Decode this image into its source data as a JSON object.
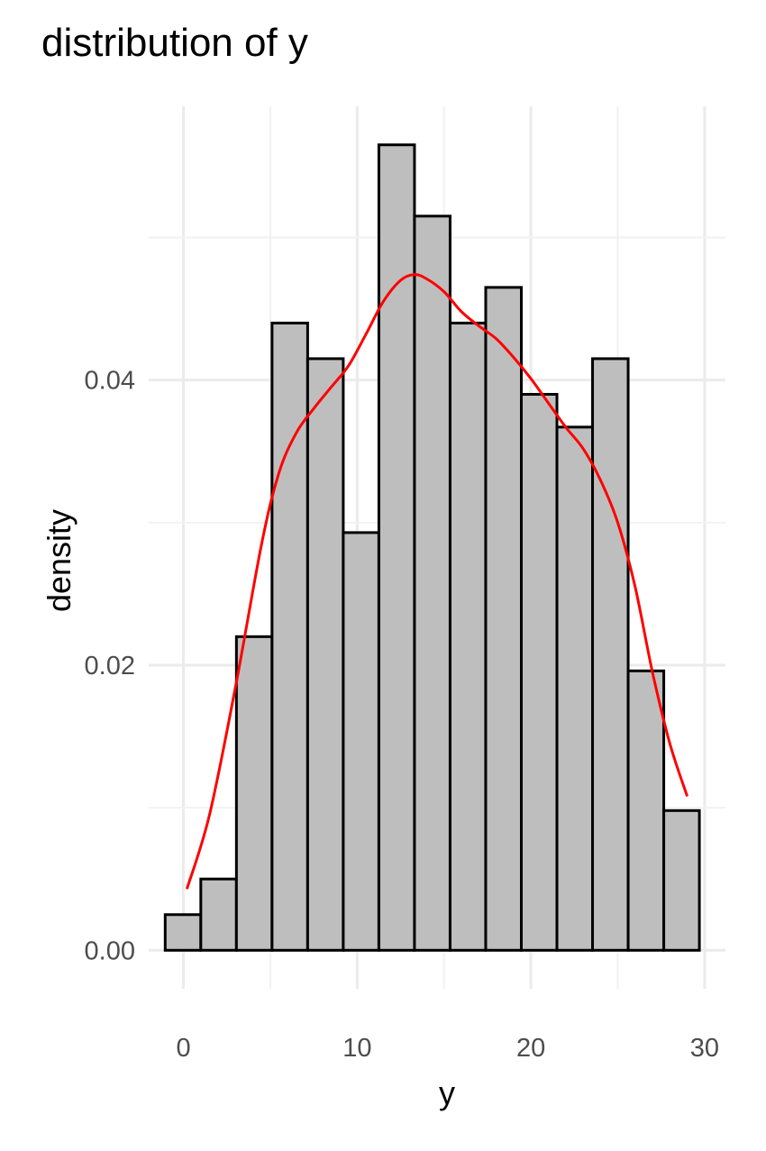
{
  "chart_data": {
    "type": "histogram",
    "title": "distribution of y",
    "xlabel": "y",
    "ylabel": "density",
    "xlim": [
      -2.0,
      31.2
    ],
    "ylim": [
      -0.0027,
      0.0592
    ],
    "x_ticks": [
      0,
      10,
      20,
      30
    ],
    "x_tick_labels": [
      "0",
      "10",
      "20",
      "30"
    ],
    "y_ticks": [
      0.0,
      0.02,
      0.04
    ],
    "y_tick_labels": [
      "0.00",
      "0.02",
      "0.04"
    ],
    "grid": true,
    "colors": {
      "bar_fill": "#bebebe",
      "bar_outline": "#000000",
      "density_line": "#ff0000",
      "grid": "#ebebeb"
    },
    "bins": [
      {
        "x0": -1.05,
        "x1": 1.0,
        "density": 0.0025
      },
      {
        "x0": 1.0,
        "x1": 3.05,
        "density": 0.005
      },
      {
        "x0": 3.05,
        "x1": 5.1,
        "density": 0.022
      },
      {
        "x0": 5.1,
        "x1": 7.15,
        "density": 0.044
      },
      {
        "x0": 7.15,
        "x1": 9.2,
        "density": 0.0415
      },
      {
        "x0": 9.2,
        "x1": 11.25,
        "density": 0.0293
      },
      {
        "x0": 11.25,
        "x1": 13.3,
        "density": 0.0565
      },
      {
        "x0": 13.3,
        "x1": 15.35,
        "density": 0.0515
      },
      {
        "x0": 15.35,
        "x1": 17.4,
        "density": 0.044
      },
      {
        "x0": 17.4,
        "x1": 19.45,
        "density": 0.0465
      },
      {
        "x0": 19.45,
        "x1": 21.5,
        "density": 0.039
      },
      {
        "x0": 21.5,
        "x1": 23.55,
        "density": 0.0367
      },
      {
        "x0": 23.55,
        "x1": 25.6,
        "density": 0.0415
      },
      {
        "x0": 25.6,
        "x1": 27.65,
        "density": 0.0196
      },
      {
        "x0": 27.65,
        "x1": 29.7,
        "density": 0.0098
      }
    ],
    "density_curve": {
      "x": [
        0.2,
        1.5,
        3.0,
        4.5,
        5.5,
        6.5,
        7.5,
        8.5,
        9.5,
        10.5,
        11.5,
        12.5,
        13.3,
        14.0,
        15.0,
        16.0,
        17.0,
        18.0,
        19.0,
        20.0,
        21.0,
        22.0,
        23.0,
        24.0,
        25.0,
        26.0,
        27.0,
        28.0,
        29.0
      ],
      "y": [
        0.0043,
        0.0095,
        0.0185,
        0.0285,
        0.0335,
        0.0363,
        0.038,
        0.0395,
        0.041,
        0.0432,
        0.0455,
        0.047,
        0.0474,
        0.0471,
        0.0462,
        0.0448,
        0.0438,
        0.0429,
        0.0416,
        0.0401,
        0.0384,
        0.0367,
        0.0352,
        0.033,
        0.03,
        0.0255,
        0.0195,
        0.0145,
        0.0108
      ]
    }
  }
}
